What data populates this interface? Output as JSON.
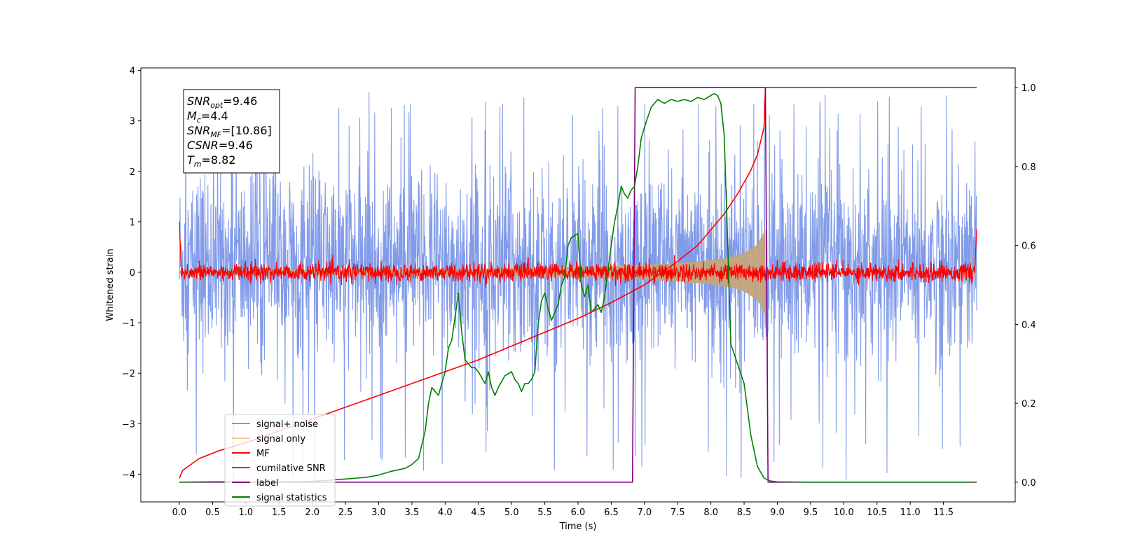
{
  "chart_data": {
    "type": "line",
    "xlabel": "Time (s)",
    "ylabel": "Whitened strain",
    "xlim": [
      -0.58,
      12.58
    ],
    "ylim": [
      -4.55,
      4.05
    ],
    "y2lim": [
      -0.05,
      1.05
    ],
    "grid": false,
    "legend_placement": "lower-left",
    "x_ticks": [
      "0.0",
      "0.5",
      "1.0",
      "1.5",
      "2.0",
      "2.5",
      "3.0",
      "3.5",
      "4.0",
      "4.5",
      "5.0",
      "5.5",
      "6.0",
      "6.5",
      "7.0",
      "7.5",
      "8.0",
      "8.5",
      "9.0",
      "9.5",
      "10.0",
      "10.5",
      "11.0",
      "11.5"
    ],
    "x_tick_values": [
      0,
      0.5,
      1,
      1.5,
      2,
      2.5,
      3,
      3.5,
      4,
      4.5,
      5,
      5.5,
      6,
      6.5,
      7,
      7.5,
      8,
      8.5,
      9,
      9.5,
      10,
      10.5,
      11,
      11.5
    ],
    "y_ticks": [
      "4",
      "3",
      "2",
      "1",
      "0",
      "−1",
      "−2",
      "−3",
      "−4"
    ],
    "y_tick_values": [
      4,
      3,
      2,
      1,
      0,
      -1,
      -2,
      -3,
      -4
    ],
    "y2_ticks": [
      "1.0",
      "0.8",
      "0.6",
      "0.4",
      "0.2",
      "0.0"
    ],
    "y2_tick_values": [
      1.0,
      0.8,
      0.6,
      0.4,
      0.2,
      0.0
    ],
    "annotation": {
      "lines": [
        {
          "base": "SNR",
          "sub": "opt",
          "rest": "=9.46"
        },
        {
          "base": "M",
          "sub": "c",
          "rest": "=4.4"
        },
        {
          "base": "SNR",
          "sub": "MF",
          "rest": "=[10.86]"
        },
        {
          "base": "CSNR",
          "sub": "",
          "rest": "=9.46"
        },
        {
          "base": "T",
          "sub": "m",
          "rest": "=8.82"
        }
      ]
    },
    "noise": {
      "x_start": 0.0,
      "x_end": 12.0,
      "band_low": -1.6,
      "band_high": 1.9,
      "typical_min": -2.5,
      "typical_max": 2.5,
      "spike_max": 3.6,
      "spike_min": -4.15
    },
    "series": [
      {
        "name": "signal+ noise",
        "color": "#7b96e8",
        "axis": "left"
      },
      {
        "name": "signal only",
        "color": "#c4a47c",
        "axis": "left",
        "envelope": [
          [
            0.0,
            0.03
          ],
          [
            2.0,
            0.05
          ],
          [
            4.0,
            0.06
          ],
          [
            5.5,
            0.09
          ],
          [
            6.5,
            0.12
          ],
          [
            7.0,
            0.15
          ],
          [
            7.5,
            0.18
          ],
          [
            8.0,
            0.24
          ],
          [
            8.3,
            0.3
          ],
          [
            8.5,
            0.38
          ],
          [
            8.7,
            0.55
          ],
          [
            8.8,
            0.8
          ],
          [
            8.82,
            0.85
          ]
        ]
      },
      {
        "name": "MF",
        "color": "#ff0000",
        "axis": "left",
        "edge_start": 1.0,
        "edge_end": 0.85,
        "noise_amp": 0.1
      },
      {
        "name": "cumilative SNR",
        "color": "#ff0000",
        "axis": "right",
        "x": [
          0.0,
          0.05,
          0.3,
          0.6,
          1.0,
          1.5,
          2.0,
          2.5,
          3.0,
          3.5,
          4.0,
          4.5,
          5.0,
          5.5,
          6.0,
          6.5,
          7.0,
          7.5,
          7.8,
          8.0,
          8.2,
          8.4,
          8.6,
          8.7,
          8.8,
          8.82,
          12.0
        ],
        "y": [
          0.01,
          0.03,
          0.06,
          0.08,
          0.1,
          0.13,
          0.16,
          0.19,
          0.22,
          0.25,
          0.28,
          0.31,
          0.345,
          0.38,
          0.415,
          0.455,
          0.5,
          0.56,
          0.6,
          0.64,
          0.68,
          0.73,
          0.79,
          0.83,
          0.9,
          1.0,
          1.0
        ]
      },
      {
        "name": "label",
        "color": "#800080",
        "axis": "right",
        "x": [
          0.0,
          6.82,
          6.86,
          8.82,
          8.86,
          12.0
        ],
        "y": [
          0.0,
          0.0,
          1.0,
          1.0,
          0.0,
          0.0
        ]
      },
      {
        "name": "signal statistics",
        "color": "#008000",
        "axis": "right",
        "x": [
          0.0,
          0.5,
          1.0,
          1.5,
          2.0,
          2.5,
          2.8,
          3.0,
          3.2,
          3.4,
          3.5,
          3.6,
          3.7,
          3.75,
          3.8,
          3.9,
          4.0,
          4.05,
          4.1,
          4.15,
          4.2,
          4.25,
          4.3,
          4.4,
          4.45,
          4.5,
          4.6,
          4.65,
          4.7,
          4.75,
          4.8,
          4.9,
          5.0,
          5.05,
          5.1,
          5.15,
          5.2,
          5.25,
          5.3,
          5.35,
          5.4,
          5.45,
          5.5,
          5.55,
          5.6,
          5.65,
          5.7,
          5.75,
          5.8,
          5.85,
          5.9,
          6.0,
          6.05,
          6.1,
          6.15,
          6.2,
          6.25,
          6.3,
          6.35,
          6.4,
          6.5,
          6.55,
          6.6,
          6.65,
          6.7,
          6.75,
          6.8,
          6.85,
          6.9,
          6.95,
          7.0,
          7.1,
          7.2,
          7.3,
          7.4,
          7.5,
          7.6,
          7.7,
          7.8,
          7.9,
          8.0,
          8.05,
          8.1,
          8.15,
          8.2,
          8.25,
          8.3,
          8.4,
          8.5,
          8.6,
          8.7,
          8.8,
          8.9,
          9.0,
          9.5,
          10.0,
          11.0,
          11.95
        ],
        "y": [
          0.0,
          0.001,
          0.001,
          0.001,
          0.002,
          0.008,
          0.012,
          0.018,
          0.028,
          0.035,
          0.045,
          0.06,
          0.13,
          0.2,
          0.24,
          0.22,
          0.28,
          0.34,
          0.36,
          0.42,
          0.48,
          0.38,
          0.31,
          0.29,
          0.29,
          0.28,
          0.25,
          0.28,
          0.24,
          0.22,
          0.24,
          0.27,
          0.28,
          0.26,
          0.25,
          0.23,
          0.25,
          0.25,
          0.26,
          0.28,
          0.4,
          0.46,
          0.48,
          0.44,
          0.41,
          0.43,
          0.45,
          0.5,
          0.52,
          0.6,
          0.62,
          0.63,
          0.5,
          0.47,
          0.5,
          0.43,
          0.44,
          0.45,
          0.43,
          0.47,
          0.6,
          0.66,
          0.7,
          0.75,
          0.73,
          0.72,
          0.74,
          0.75,
          0.8,
          0.87,
          0.9,
          0.95,
          0.97,
          0.96,
          0.97,
          0.965,
          0.97,
          0.965,
          0.975,
          0.97,
          0.98,
          0.985,
          0.98,
          0.96,
          0.88,
          0.62,
          0.35,
          0.3,
          0.25,
          0.12,
          0.04,
          0.01,
          0.003,
          0.001,
          0.0,
          0.0,
          0.0,
          0.0
        ]
      }
    ]
  }
}
